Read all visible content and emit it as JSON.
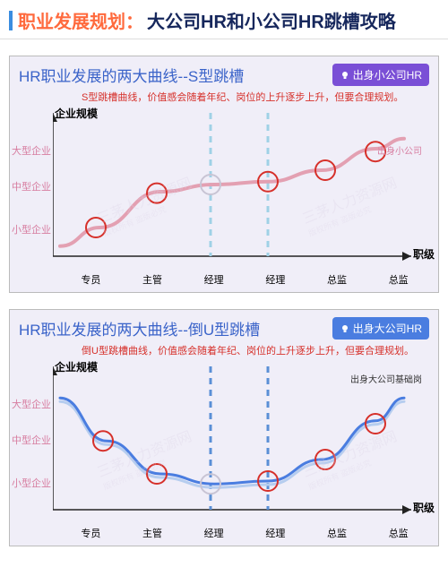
{
  "title": {
    "prefix": "职业发展规划：",
    "rest": "大公司HR和小公司HR跳槽攻略",
    "prefix_color": "#ff6a3d",
    "rest_color": "#16275c",
    "bar_color": "#3a8de0"
  },
  "charts": [
    {
      "heading": "HR职业发展的两大曲线--S型跳槽",
      "heading_color": "#3a63c9",
      "badge": {
        "text": "出身小公司HR",
        "bg": "#7a4fd6"
      },
      "subtitle": "S型跳槽曲线，价值感会随着年纪、岗位的上升逐步上升，但要合理规划。",
      "subtitle_color": "#d6302a",
      "panel_bg": "#f0eef8",
      "y_axis": {
        "label": "企业规模",
        "ticks": [
          "大型企业",
          "中型企业",
          "小型企业"
        ],
        "tick_color": "#d77da0"
      },
      "x_axis": {
        "label": "职级",
        "ticks": [
          "专员",
          "主管",
          "经理",
          "经理",
          "总监",
          "总监"
        ]
      },
      "legend": "出身小公司",
      "legend_color": "#d77da0",
      "curve": {
        "type": "s-curve",
        "stroke": "#e3a0b2",
        "stroke_width": 4,
        "points": [
          {
            "x": 0.02,
            "y": 0.93
          },
          {
            "x": 0.13,
            "y": 0.8
          },
          {
            "x": 0.3,
            "y": 0.55
          },
          {
            "x": 0.45,
            "y": 0.5
          },
          {
            "x": 0.6,
            "y": 0.48
          },
          {
            "x": 0.75,
            "y": 0.4
          },
          {
            "x": 0.9,
            "y": 0.25
          },
          {
            "x": 0.98,
            "y": 0.18
          }
        ]
      },
      "markers": [
        {
          "x": 0.12,
          "y": 0.8,
          "style": "solid"
        },
        {
          "x": 0.29,
          "y": 0.56,
          "style": "solid"
        },
        {
          "x": 0.44,
          "y": 0.5,
          "style": "hollow"
        },
        {
          "x": 0.6,
          "y": 0.48,
          "style": "solid"
        },
        {
          "x": 0.76,
          "y": 0.4,
          "style": "solid"
        },
        {
          "x": 0.9,
          "y": 0.27,
          "style": "solid"
        }
      ],
      "marker_color_solid": "#d6302a",
      "marker_color_hollow": "#c8c4d4",
      "marker_radius": 11,
      "marker_stroke_width": 2,
      "dashed_verticals": [
        0.44,
        0.6
      ],
      "dashed_color": "#9fd1e6",
      "watermark": {
        "text": "三茅人力资源网",
        "sub": "版权所有 盗版必究",
        "color": "#dcd2e6"
      }
    },
    {
      "heading": "HR职业发展的两大曲线--倒U型跳槽",
      "heading_color": "#3a63c9",
      "badge": {
        "text": "出身大公司HR",
        "bg": "#4a7de0"
      },
      "subtitle": "倒U型跳槽曲线，价值感会随着年纪、岗位的上升逐步上升，但要合理规划。",
      "subtitle_color": "#d6302a",
      "panel_bg": "#f0eef8",
      "y_axis": {
        "label": "企业规模",
        "ticks": [
          "大型企业",
          "中型企业",
          "小型企业"
        ],
        "tick_color": "#d77da0"
      },
      "x_axis": {
        "label": "职级",
        "ticks": [
          "专员",
          "主管",
          "经理",
          "经理",
          "总监",
          "总监"
        ]
      },
      "legend": "出身大公司基础岗",
      "legend_color": "#333",
      "curve": {
        "type": "u-curve",
        "stroke": "#4a7de0",
        "stroke_width": 3,
        "double": true,
        "points": [
          {
            "x": 0.02,
            "y": 0.22
          },
          {
            "x": 0.15,
            "y": 0.52
          },
          {
            "x": 0.3,
            "y": 0.75
          },
          {
            "x": 0.45,
            "y": 0.82
          },
          {
            "x": 0.6,
            "y": 0.8
          },
          {
            "x": 0.75,
            "y": 0.65
          },
          {
            "x": 0.9,
            "y": 0.38
          },
          {
            "x": 0.98,
            "y": 0.22
          }
        ]
      },
      "markers": [
        {
          "x": 0.14,
          "y": 0.52,
          "style": "solid"
        },
        {
          "x": 0.29,
          "y": 0.75,
          "style": "solid"
        },
        {
          "x": 0.44,
          "y": 0.82,
          "style": "hollow"
        },
        {
          "x": 0.6,
          "y": 0.8,
          "style": "solid"
        },
        {
          "x": 0.76,
          "y": 0.65,
          "style": "solid"
        },
        {
          "x": 0.9,
          "y": 0.4,
          "style": "solid"
        }
      ],
      "marker_color_solid": "#d6302a",
      "marker_color_hollow": "#c8c4d4",
      "marker_radius": 11,
      "marker_stroke_width": 2,
      "dashed_verticals": [
        0.44,
        0.6
      ],
      "dashed_color": "#5a8fd6",
      "watermark": {
        "text": "三茅人力资源网",
        "sub": "版权所有 盗版必究",
        "color": "#dcd2e6"
      }
    }
  ],
  "axis_color": "#222",
  "chart_inner_width": 400,
  "chart_inner_height": 160
}
